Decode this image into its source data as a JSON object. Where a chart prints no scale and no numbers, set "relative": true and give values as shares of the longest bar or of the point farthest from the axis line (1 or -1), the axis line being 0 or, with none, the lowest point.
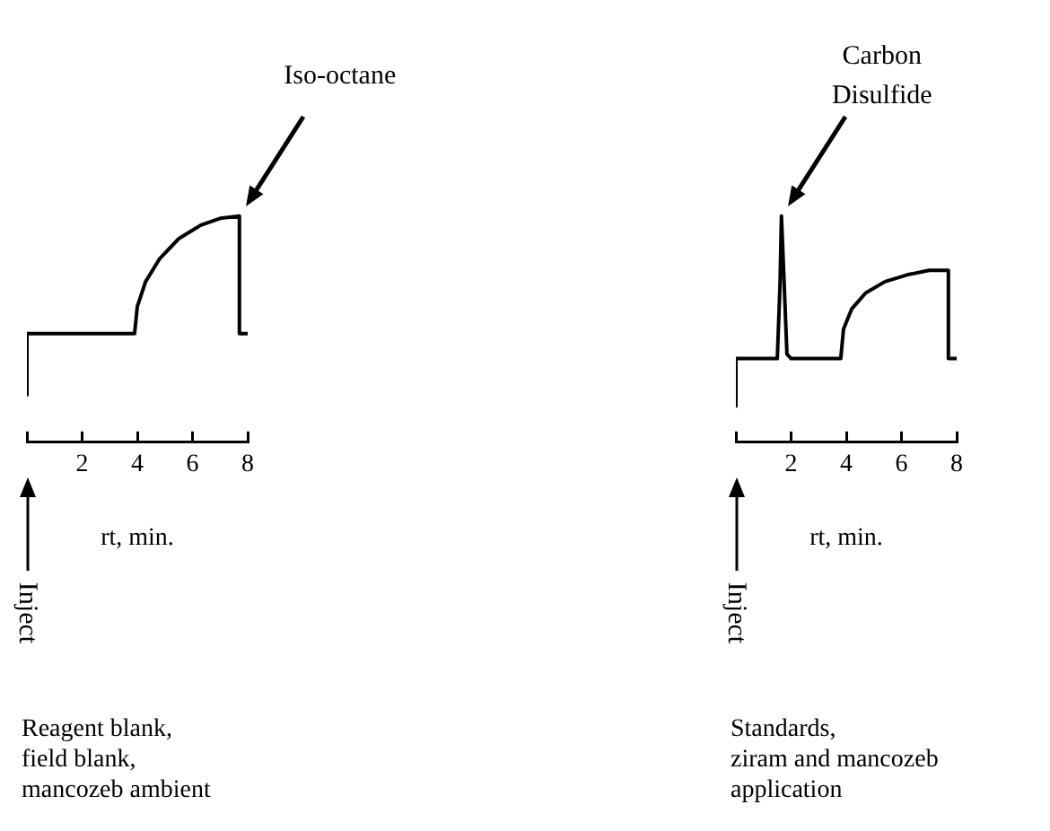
{
  "chart_data": [
    {
      "type": "line",
      "relative": true,
      "xlabel": "rt, min.",
      "xlim": [
        0,
        8
      ],
      "xticks": [
        {
          "value": 0,
          "label": null
        },
        2,
        4,
        6,
        8
      ],
      "series": [
        {
          "color": "#000000",
          "x": [
            0,
            0,
            3.9,
            4.0,
            4.3,
            4.8,
            5.5,
            6.3,
            7.0,
            7.7,
            7.7,
            8
          ],
          "values": [
            0.21,
            0.48,
            0.48,
            0.6,
            0.71,
            0.81,
            0.9,
            0.96,
            0.99,
            1,
            0.48,
            0.48
          ]
        }
      ],
      "annotations": [
        "Iso-octane",
        "Inject",
        "Reagent blank,\nfield blank,\nmancozeb ambient"
      ]
    },
    {
      "type": "line",
      "relative": true,
      "xlabel": "rt, min.",
      "xlim": [
        0,
        8
      ],
      "xticks": [
        {
          "value": 0,
          "label": null
        },
        2,
        4,
        6,
        8
      ],
      "series": [
        {
          "color": "#000000",
          "x": [
            0,
            0,
            1.5,
            1.6,
            1.65,
            1.75,
            1.85,
            2.0,
            3.8,
            3.9,
            4.2,
            4.7,
            5.4,
            6.2,
            7.0,
            7.7,
            7.7,
            8
          ],
          "values": [
            0.16,
            0.37,
            0.37,
            0.7,
            1,
            0.7,
            0.39,
            0.37,
            0.37,
            0.5,
            0.59,
            0.66,
            0.71,
            0.74,
            0.76,
            0.76,
            0.37,
            0.37
          ]
        }
      ],
      "annotations": [
        "Carbon\nDisulfide",
        "Inject",
        "Standards,\nziram and mancozeb\napplication"
      ]
    }
  ]
}
